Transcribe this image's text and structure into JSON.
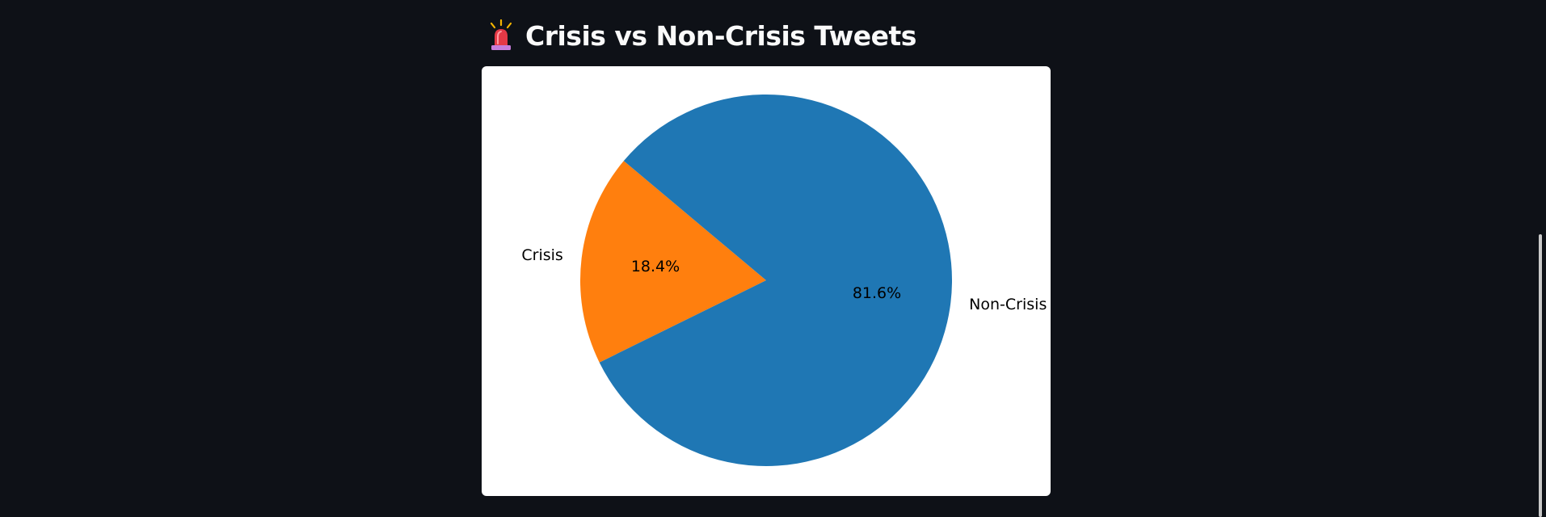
{
  "header": {
    "icon": "siren-icon",
    "title": "Crisis vs Non-Crisis Tweets"
  },
  "chart_data": {
    "type": "pie",
    "title": "",
    "categories": [
      "Crisis",
      "Non-Crisis"
    ],
    "values": [
      18.4,
      81.6
    ],
    "percent_labels": [
      "18.4%",
      "81.6%"
    ],
    "colors": [
      "#ff7f0e",
      "#1f77b4"
    ],
    "start_angle_deg": 140,
    "legend": "none"
  },
  "colors": {
    "background": "#0e1117",
    "card": "#ffffff",
    "title_text": "#fafafa"
  }
}
